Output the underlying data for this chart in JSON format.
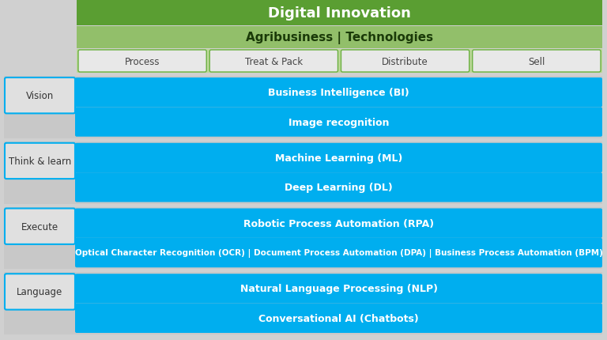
{
  "title": "Digital Innovation",
  "subtitle": "Agribusiness | Technologies",
  "title_bg": "#5a9e32",
  "subtitle_bg": "#92bf6a",
  "header_bg": "#bdd89a",
  "category_box_bg": "#e8e8e8",
  "category_box_border": "#6ab040",
  "blue_box_bg": "#00aeef",
  "outer_bg": "#d0d0d0",
  "row_bg": "#c8c8c8",
  "label_box_bg": "#e0e0e0",
  "label_box_border": "#00aeef",
  "categories": [
    "Process",
    "Treat & Pack",
    "Distribute",
    "Sell"
  ],
  "rows": [
    {
      "label": "Vision",
      "items": [
        "Business Intelligence (BI)",
        "Image recognition"
      ]
    },
    {
      "label": "Think & learn",
      "items": [
        "Machine Learning (ML)",
        "Deep Learning (DL)"
      ]
    },
    {
      "label": "Execute",
      "items": [
        "Robotic Process Automation (RPA)",
        "Optical Character Recognition (OCR) | Document Process Automation (DPA) | Business Process Automation (BPM)"
      ]
    },
    {
      "label": "Language",
      "items": [
        "Natural Language Processing (NLP)",
        "Conversational AI (Chatbots)"
      ]
    }
  ],
  "fig_width": 7.68,
  "fig_height": 4.31,
  "dpi": 100
}
